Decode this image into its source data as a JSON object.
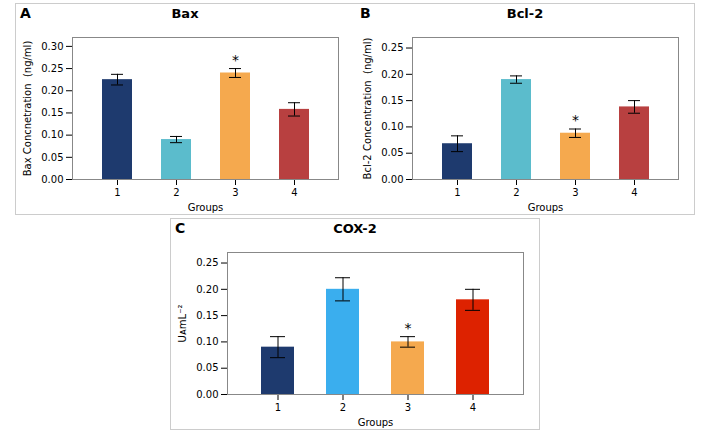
{
  "chart_data": [
    {
      "type": "bar",
      "panel_label": "A",
      "title": "Bax",
      "xlabel": "Groups",
      "ylabel": "Bax Concnetration  (ng/ml)",
      "categories": [
        "1",
        "2",
        "3",
        "4"
      ],
      "values": [
        0.225,
        0.09,
        0.24,
        0.158
      ],
      "errors": [
        0.012,
        0.007,
        0.01,
        0.015
      ],
      "colors": [
        "#1e3a6e",
        "#5bbccc",
        "#f5a94e",
        "#b84040"
      ],
      "ylim": [
        0,
        0.32
      ],
      "yticks": [
        {
          "value": 0.0,
          "label": "0.00"
        },
        0.05,
        {
          "value": 0.1,
          "label": "0.10"
        },
        0.15,
        {
          "value": 0.2,
          "label": "0.20"
        },
        0.25,
        {
          "value": 0.3,
          "label": "0.30"
        }
      ],
      "annotations": [
        {
          "text": "*",
          "category": "3"
        }
      ]
    },
    {
      "type": "bar",
      "panel_label": "B",
      "title": "Bcl-2",
      "xlabel": "Groups",
      "ylabel": "Bcl-2 Concentration  (ng/ml)",
      "categories": [
        "1",
        "2",
        "3",
        "4"
      ],
      "values": [
        0.068,
        0.19,
        0.088,
        0.138
      ],
      "errors": [
        0.015,
        0.007,
        0.008,
        0.012
      ],
      "colors": [
        "#1e3a6e",
        "#5bbccc",
        "#f5a94e",
        "#b84040"
      ],
      "ylim": [
        0,
        0.27
      ],
      "yticks": [
        {
          "value": 0.0,
          "label": "0.00"
        },
        0.05,
        {
          "value": 0.1,
          "label": "0.10"
        },
        0.15,
        {
          "value": 0.2,
          "label": "0.20"
        },
        0.25
      ],
      "annotations": [
        {
          "text": "*",
          "category": "3"
        }
      ]
    },
    {
      "type": "bar",
      "panel_label": "C",
      "title": "COX-2",
      "xlabel": "Groups",
      "ylabel": "UᴀmL⁻²",
      "categories": [
        "1",
        "2",
        "3",
        "4"
      ],
      "values": [
        0.09,
        0.2,
        0.1,
        0.18
      ],
      "errors": [
        0.02,
        0.022,
        0.01,
        0.02
      ],
      "colors": [
        "#1e3a6e",
        "#3aaeee",
        "#f5a94e",
        "#dd2200"
      ],
      "ylim": [
        0,
        0.27
      ],
      "yticks": [
        {
          "value": 0.0,
          "label": "0.00"
        },
        0.05,
        {
          "value": 0.1,
          "label": "0.10"
        },
        0.15,
        {
          "value": 0.2,
          "label": "0.20"
        },
        0.25
      ],
      "annotations": [
        {
          "text": "*",
          "category": "3"
        }
      ]
    }
  ]
}
